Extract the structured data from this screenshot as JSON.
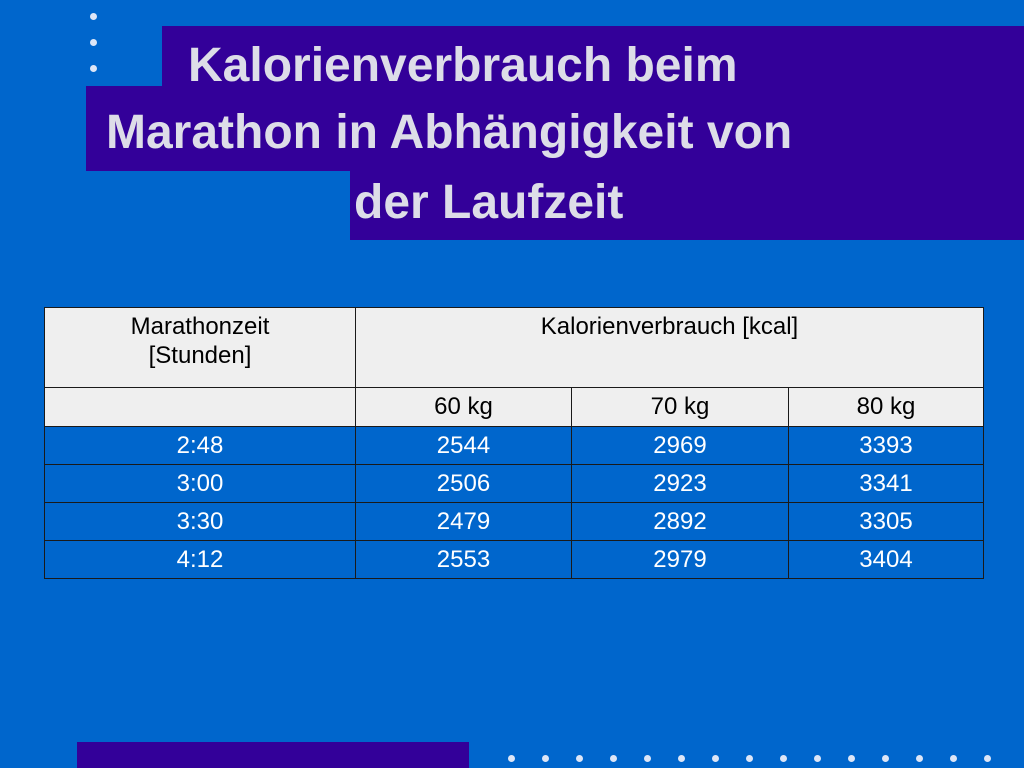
{
  "title": {
    "line1": "Kalorienverbrauch beim",
    "line2": "Marathon in Abhängigkeit von",
    "line3": "der Laufzeit"
  },
  "table": {
    "header_time": "Marathonzeit [Stunden]",
    "header_time_line1": "Marathonzeit",
    "header_time_line2": "[Stunden]",
    "header_kcal": "Kalorienverbrauch [kcal]",
    "weights": [
      "60 kg",
      "70 kg",
      "80 kg"
    ],
    "rows": [
      {
        "time": "2:48",
        "values": [
          "2544",
          "2969",
          "3393"
        ]
      },
      {
        "time": "3:00",
        "values": [
          "2506",
          "2923",
          "3341"
        ]
      },
      {
        "time": "3:30",
        "values": [
          "2479",
          "2892",
          "3305"
        ]
      },
      {
        "time": "4:12",
        "values": [
          "2553",
          "2979",
          "3404"
        ]
      }
    ]
  },
  "colors": {
    "background": "#0066cc",
    "accent_block": "#330099",
    "title_text": "#dddde8",
    "header_cell": "#efefef",
    "dots": "#dde6f7"
  }
}
